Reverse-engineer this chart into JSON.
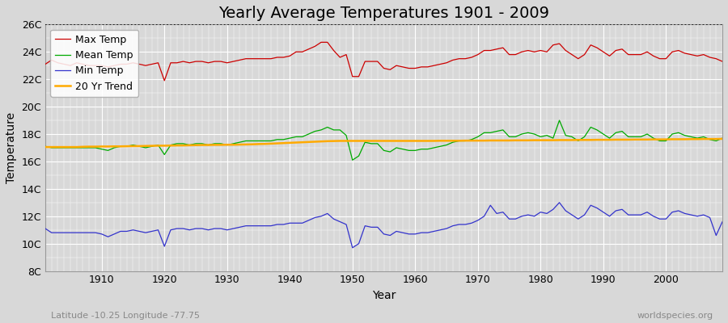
{
  "title": "Yearly Average Temperatures 1901 - 2009",
  "xlabel": "Year",
  "ylabel": "Temperature",
  "bottom_left": "Latitude -10.25 Longitude -77.75",
  "bottom_right": "worldspecies.org",
  "years": [
    1901,
    1902,
    1903,
    1904,
    1905,
    1906,
    1907,
    1908,
    1909,
    1910,
    1911,
    1912,
    1913,
    1914,
    1915,
    1916,
    1917,
    1918,
    1919,
    1920,
    1921,
    1922,
    1923,
    1924,
    1925,
    1926,
    1927,
    1928,
    1929,
    1930,
    1931,
    1932,
    1933,
    1934,
    1935,
    1936,
    1937,
    1938,
    1939,
    1940,
    1941,
    1942,
    1943,
    1944,
    1945,
    1946,
    1947,
    1948,
    1949,
    1950,
    1951,
    1952,
    1953,
    1954,
    1955,
    1956,
    1957,
    1958,
    1959,
    1960,
    1961,
    1962,
    1963,
    1964,
    1965,
    1966,
    1967,
    1968,
    1969,
    1970,
    1971,
    1972,
    1973,
    1974,
    1975,
    1976,
    1977,
    1978,
    1979,
    1980,
    1981,
    1982,
    1983,
    1984,
    1985,
    1986,
    1987,
    1988,
    1989,
    1990,
    1991,
    1992,
    1993,
    1994,
    1995,
    1996,
    1997,
    1998,
    1999,
    2000,
    2001,
    2002,
    2003,
    2004,
    2005,
    2006,
    2007,
    2008,
    2009
  ],
  "max_temp": [
    23.1,
    23.4,
    23.2,
    23.1,
    23.0,
    23.2,
    23.1,
    23.0,
    23.0,
    23.0,
    22.9,
    23.0,
    23.1,
    23.1,
    23.2,
    23.1,
    23.0,
    23.1,
    23.2,
    21.9,
    23.2,
    23.2,
    23.3,
    23.2,
    23.3,
    23.3,
    23.2,
    23.3,
    23.3,
    23.2,
    23.3,
    23.4,
    23.5,
    23.5,
    23.5,
    23.5,
    23.5,
    23.6,
    23.6,
    23.7,
    24.0,
    24.0,
    24.2,
    24.4,
    24.7,
    24.7,
    24.1,
    23.6,
    23.8,
    22.2,
    22.2,
    23.3,
    23.3,
    23.3,
    22.8,
    22.7,
    23.0,
    22.9,
    22.8,
    22.8,
    22.9,
    22.9,
    23.0,
    23.1,
    23.2,
    23.4,
    23.5,
    23.5,
    23.6,
    23.8,
    24.1,
    24.1,
    24.2,
    24.3,
    23.8,
    23.8,
    24.0,
    24.1,
    24.0,
    24.1,
    24.0,
    24.5,
    24.6,
    24.1,
    23.8,
    23.5,
    23.8,
    24.5,
    24.3,
    24.0,
    23.7,
    24.1,
    24.2,
    23.8,
    23.8,
    23.8,
    24.0,
    23.7,
    23.5,
    23.5,
    24.0,
    24.1,
    23.9,
    23.8,
    23.7,
    23.8,
    23.6,
    23.5,
    23.3
  ],
  "mean_temp": [
    17.1,
    17.0,
    17.0,
    17.0,
    17.0,
    17.0,
    17.0,
    17.0,
    17.0,
    16.9,
    16.8,
    17.0,
    17.1,
    17.1,
    17.2,
    17.1,
    17.0,
    17.1,
    17.2,
    16.5,
    17.2,
    17.3,
    17.3,
    17.2,
    17.3,
    17.3,
    17.2,
    17.3,
    17.3,
    17.2,
    17.3,
    17.4,
    17.5,
    17.5,
    17.5,
    17.5,
    17.5,
    17.6,
    17.6,
    17.7,
    17.8,
    17.8,
    18.0,
    18.2,
    18.3,
    18.5,
    18.3,
    18.3,
    17.9,
    16.1,
    16.4,
    17.4,
    17.3,
    17.3,
    16.8,
    16.7,
    17.0,
    16.9,
    16.8,
    16.8,
    16.9,
    16.9,
    17.0,
    17.1,
    17.2,
    17.4,
    17.5,
    17.5,
    17.6,
    17.8,
    18.1,
    18.1,
    18.2,
    18.3,
    17.8,
    17.8,
    18.0,
    18.1,
    18.0,
    17.8,
    17.9,
    17.7,
    19.0,
    17.9,
    17.8,
    17.5,
    17.8,
    18.5,
    18.3,
    18.0,
    17.7,
    18.1,
    18.2,
    17.8,
    17.8,
    17.8,
    18.0,
    17.7,
    17.5,
    17.5,
    18.0,
    18.1,
    17.9,
    17.8,
    17.7,
    17.8,
    17.6,
    17.5,
    17.7
  ],
  "min_temp": [
    11.1,
    10.8,
    10.8,
    10.8,
    10.8,
    10.8,
    10.8,
    10.8,
    10.8,
    10.7,
    10.5,
    10.7,
    10.9,
    10.9,
    11.0,
    10.9,
    10.8,
    10.9,
    11.0,
    9.8,
    11.0,
    11.1,
    11.1,
    11.0,
    11.1,
    11.1,
    11.0,
    11.1,
    11.1,
    11.0,
    11.1,
    11.2,
    11.3,
    11.3,
    11.3,
    11.3,
    11.3,
    11.4,
    11.4,
    11.5,
    11.5,
    11.5,
    11.7,
    11.9,
    12.0,
    12.2,
    11.8,
    11.6,
    11.4,
    9.7,
    10.0,
    11.3,
    11.2,
    11.2,
    10.7,
    10.6,
    10.9,
    10.8,
    10.7,
    10.7,
    10.8,
    10.8,
    10.9,
    11.0,
    11.1,
    11.3,
    11.4,
    11.4,
    11.5,
    11.7,
    12.0,
    12.8,
    12.2,
    12.3,
    11.8,
    11.8,
    12.0,
    12.1,
    12.0,
    12.3,
    12.2,
    12.5,
    13.0,
    12.4,
    12.1,
    11.8,
    12.1,
    12.8,
    12.6,
    12.3,
    12.0,
    12.4,
    12.5,
    12.1,
    12.1,
    12.1,
    12.3,
    12.0,
    11.8,
    11.8,
    12.3,
    12.4,
    12.2,
    12.1,
    12.0,
    12.1,
    11.9,
    10.6,
    11.6
  ],
  "trend_years": [
    1901,
    1902,
    1903,
    1904,
    1905,
    1906,
    1907,
    1908,
    1909,
    1910,
    1911,
    1912,
    1913,
    1914,
    1915,
    1916,
    1917,
    1918,
    1919,
    1920,
    1921,
    1922,
    1923,
    1924,
    1925,
    1926,
    1927,
    1928,
    1929,
    1930,
    1931,
    1932,
    1933,
    1934,
    1935,
    1936,
    1937,
    1938,
    1939,
    1940,
    1941,
    1942,
    1943,
    1944,
    1945,
    1946,
    1947,
    1948,
    1949,
    1950,
    1951,
    1952,
    1953,
    1954,
    1955,
    1956,
    1957,
    1958,
    1959,
    1960,
    1961,
    1962,
    1963,
    1964,
    1965,
    1966,
    1967,
    1968,
    1969,
    1970,
    1971,
    1972,
    1973,
    1974,
    1975,
    1976,
    1977,
    1978,
    1979,
    1980,
    1981,
    1982,
    1983,
    1984,
    1985,
    1986,
    1987,
    1988,
    1989,
    1990,
    1991,
    1992,
    1993,
    1994,
    1995,
    1996,
    1997,
    1998,
    1999,
    2000,
    2001,
    2002,
    2003,
    2004,
    2005,
    2006,
    2007,
    2008,
    2009
  ],
  "trend": [
    17.05,
    17.05,
    17.05,
    17.05,
    17.05,
    17.05,
    17.07,
    17.08,
    17.08,
    17.09,
    17.09,
    17.1,
    17.1,
    17.11,
    17.12,
    17.12,
    17.13,
    17.14,
    17.15,
    17.15,
    17.16,
    17.17,
    17.17,
    17.18,
    17.19,
    17.2,
    17.2,
    17.21,
    17.21,
    17.22,
    17.22,
    17.23,
    17.24,
    17.25,
    17.27,
    17.28,
    17.3,
    17.32,
    17.34,
    17.36,
    17.38,
    17.4,
    17.42,
    17.44,
    17.46,
    17.48,
    17.49,
    17.5,
    17.5,
    17.5,
    17.5,
    17.5,
    17.5,
    17.5,
    17.5,
    17.5,
    17.5,
    17.5,
    17.5,
    17.5,
    17.5,
    17.5,
    17.5,
    17.51,
    17.51,
    17.51,
    17.51,
    17.52,
    17.52,
    17.52,
    17.52,
    17.53,
    17.53,
    17.53,
    17.53,
    17.54,
    17.54,
    17.54,
    17.55,
    17.55,
    17.55,
    17.55,
    17.56,
    17.56,
    17.56,
    17.57,
    17.57,
    17.57,
    17.58,
    17.58,
    17.58,
    17.59,
    17.59,
    17.59,
    17.6,
    17.6,
    17.6,
    17.61,
    17.61,
    17.61,
    17.62,
    17.62,
    17.62,
    17.63,
    17.63,
    17.64,
    17.64,
    17.64,
    17.65
  ],
  "max_color": "#cc0000",
  "mean_color": "#00aa00",
  "min_color": "#3333cc",
  "trend_color": "#ffaa00",
  "bg_color": "#d8d8d8",
  "plot_bg_color": "#d8d8d8",
  "grid_color": "#ffffff",
  "ylim_min": 8,
  "ylim_max": 26,
  "yticks": [
    8,
    10,
    12,
    14,
    16,
    18,
    20,
    22,
    24,
    26
  ],
  "ytick_labels": [
    "8C",
    "10C",
    "12C",
    "14C",
    "16C",
    "18C",
    "20C",
    "22C",
    "24C",
    "26C"
  ],
  "xticks": [
    1910,
    1920,
    1930,
    1940,
    1950,
    1960,
    1970,
    1980,
    1990,
    2000
  ],
  "xtick_labels": [
    "1910",
    "1920",
    "1930",
    "1940",
    "1950",
    "1960",
    "1970",
    "1980",
    "1990",
    "2000"
  ],
  "dotted_line_y": 26,
  "title_fontsize": 14,
  "axis_label_fontsize": 10,
  "tick_fontsize": 9,
  "legend_fontsize": 9,
  "xlim_min": 1901,
  "xlim_max": 2009
}
